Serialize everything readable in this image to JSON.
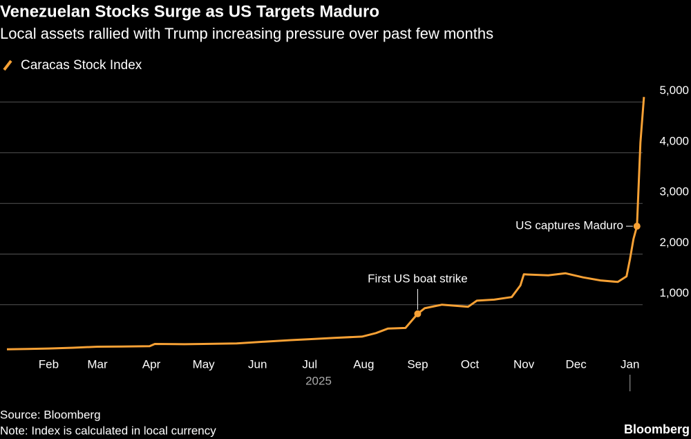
{
  "chart_data": {
    "type": "line",
    "title": "Venezuelan Stocks Surge as US Targets Maduro",
    "subtitle": "Local assets rallied with Trump increasing pressure over past few months",
    "xlabel": "2025",
    "x": [
      "2025-01-08",
      "2025-01-20",
      "2025-02-01",
      "2025-02-15",
      "2025-03-01",
      "2025-03-15",
      "2025-03-31",
      "2025-04-03",
      "2025-04-20",
      "2025-05-01",
      "2025-05-20",
      "2025-06-05",
      "2025-06-20",
      "2025-07-01",
      "2025-07-15",
      "2025-07-31",
      "2025-08-08",
      "2025-08-15",
      "2025-08-25",
      "2025-09-01",
      "2025-09-05",
      "2025-09-15",
      "2025-09-30",
      "2025-10-05",
      "2025-10-15",
      "2025-10-25",
      "2025-10-30",
      "2025-11-01",
      "2025-11-15",
      "2025-11-25",
      "2025-12-05",
      "2025-12-15",
      "2025-12-25",
      "2025-12-30",
      "2026-01-01",
      "2026-01-03",
      "2026-01-05",
      "2026-01-07",
      "2026-01-09"
    ],
    "series": [
      {
        "name": "Caracas Stock Index",
        "color": "#f7a135",
        "values": [
          120,
          125,
          135,
          150,
          170,
          175,
          180,
          225,
          220,
          225,
          235,
          270,
          300,
          320,
          345,
          370,
          440,
          530,
          540,
          820,
          930,
          1000,
          960,
          1080,
          1100,
          1150,
          1380,
          1600,
          1580,
          1620,
          1540,
          1480,
          1450,
          1560,
          1900,
          2300,
          2550,
          4200,
          5100
        ]
      }
    ],
    "xlim": [
      "2025-01-08",
      "2026-01-15"
    ],
    "xticks": [
      {
        "value": "2025-02-01",
        "label": "Feb"
      },
      {
        "value": "2025-03-01",
        "label": "Mar"
      },
      {
        "value": "2025-04-01",
        "label": "Apr"
      },
      {
        "value": "2025-05-01",
        "label": "May"
      },
      {
        "value": "2025-06-01",
        "label": "Jun"
      },
      {
        "value": "2025-07-01",
        "label": "Jul"
      },
      {
        "value": "2025-08-01",
        "label": "Aug"
      },
      {
        "value": "2025-09-01",
        "label": "Sep"
      },
      {
        "value": "2025-10-01",
        "label": "Oct"
      },
      {
        "value": "2025-11-01",
        "label": "Nov"
      },
      {
        "value": "2025-12-01",
        "label": "Dec"
      },
      {
        "value": "2026-01-01",
        "label": "Jan"
      }
    ],
    "ylim": [
      0,
      5200
    ],
    "yticks": [
      {
        "value": 1000,
        "label": "1,000"
      },
      {
        "value": 2000,
        "label": "2,000"
      },
      {
        "value": 3000,
        "label": "3,000"
      },
      {
        "value": 4000,
        "label": "4,000"
      },
      {
        "value": 5000,
        "label": "5,000"
      }
    ],
    "grid": true,
    "annotations": [
      {
        "text": "First US boat strike",
        "x": "2025-09-01",
        "y": 820
      },
      {
        "text": "US captures Maduro",
        "x": "2026-01-05",
        "y": 2550
      }
    ],
    "source": "Source: Bloomberg",
    "note": "Note: Index is calculated in local currency",
    "brand": "Bloomberg"
  }
}
